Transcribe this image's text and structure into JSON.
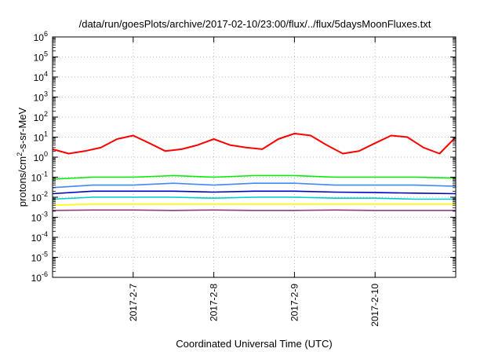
{
  "chart_data": {
    "type": "line",
    "title": "/data/run/goesPlots/archive/2017-02-10/23:00/flux/../flux/5daysMoonFluxes.txt",
    "xlabel": "Coordinated Universal Time (UTC)",
    "ylabel": {
      "prefix": "protons/cm",
      "sup": "2",
      "suffix": "-s-sr-MeV"
    },
    "yscale": "log",
    "ylim": [
      1e-06,
      1000000.0
    ],
    "xlim": [
      "2017-02-06T00:00",
      "2017-02-11T00:00"
    ],
    "y_ticks": [
      {
        "value": 1e-06,
        "base": "10",
        "exp": "-6"
      },
      {
        "value": 1e-05,
        "base": "10",
        "exp": "-5"
      },
      {
        "value": 0.0001,
        "base": "10",
        "exp": "-4"
      },
      {
        "value": 0.001,
        "base": "10",
        "exp": "-3"
      },
      {
        "value": 0.01,
        "base": "10",
        "exp": "-2"
      },
      {
        "value": 0.1,
        "base": "10",
        "exp": "-1"
      },
      {
        "value": 1,
        "base": "10",
        "exp": "0"
      },
      {
        "value": 10,
        "base": "10",
        "exp": "1"
      },
      {
        "value": 100,
        "base": "10",
        "exp": "2"
      },
      {
        "value": 1000,
        "base": "10",
        "exp": "3"
      },
      {
        "value": 10000,
        "base": "10",
        "exp": "4"
      },
      {
        "value": 100000,
        "base": "10",
        "exp": "5"
      },
      {
        "value": 1000000,
        "base": "10",
        "exp": "6"
      }
    ],
    "x_ticks": [
      {
        "value": "2017-02-07T00:00",
        "label": "2017-2-7"
      },
      {
        "value": "2017-02-08T00:00",
        "label": "2017-2-8"
      },
      {
        "value": "2017-02-09T00:00",
        "label": "2017-2-9"
      },
      {
        "value": "2017-02-10T00:00",
        "label": "2017-2-10"
      }
    ],
    "grid": true,
    "legend": "none",
    "series": [
      {
        "color": "#ff0000",
        "x": [
          "2017-02-06T00:00",
          "2017-02-06T04:48",
          "2017-02-06T09:36",
          "2017-02-06T14:24",
          "2017-02-06T19:12",
          "2017-02-07T00:00",
          "2017-02-07T04:48",
          "2017-02-07T09:36",
          "2017-02-07T14:24",
          "2017-02-07T19:12",
          "2017-02-08T00:00",
          "2017-02-08T04:48",
          "2017-02-08T09:36",
          "2017-02-08T14:24",
          "2017-02-08T19:12",
          "2017-02-09T00:00",
          "2017-02-09T04:48",
          "2017-02-09T09:36",
          "2017-02-09T14:24",
          "2017-02-09T19:12",
          "2017-02-10T00:00",
          "2017-02-10T04:48",
          "2017-02-10T09:36",
          "2017-02-10T14:24",
          "2017-02-10T19:12",
          "2017-02-11T00:00"
        ],
        "values": [
          2.5,
          1.5,
          2,
          3,
          8,
          12,
          5,
          2,
          2.5,
          4,
          8,
          4,
          3,
          2.5,
          8,
          15,
          12,
          4,
          1.5,
          2,
          5,
          12,
          10,
          3,
          1.5,
          10
        ]
      },
      {
        "color": "#00ee00",
        "x": [
          "2017-02-06T00:00",
          "2017-02-06T12:00",
          "2017-02-07T00:00",
          "2017-02-07T12:00",
          "2017-02-08T00:00",
          "2017-02-08T12:00",
          "2017-02-09T00:00",
          "2017-02-09T12:00",
          "2017-02-10T00:00",
          "2017-02-10T12:00",
          "2017-02-11T00:00"
        ],
        "values": [
          0.08,
          0.1,
          0.1,
          0.12,
          0.1,
          0.12,
          0.12,
          0.1,
          0.1,
          0.1,
          0.09
        ]
      },
      {
        "color": "#4488ff",
        "x": [
          "2017-02-06T00:00",
          "2017-02-06T12:00",
          "2017-02-07T00:00",
          "2017-02-07T12:00",
          "2017-02-08T00:00",
          "2017-02-08T12:00",
          "2017-02-09T00:00",
          "2017-02-09T12:00",
          "2017-02-10T00:00",
          "2017-02-10T12:00",
          "2017-02-11T00:00"
        ],
        "values": [
          0.03,
          0.04,
          0.04,
          0.05,
          0.04,
          0.05,
          0.05,
          0.04,
          0.04,
          0.04,
          0.035
        ]
      },
      {
        "color": "#0000cc",
        "x": [
          "2017-02-06T00:00",
          "2017-02-06T12:00",
          "2017-02-07T00:00",
          "2017-02-07T12:00",
          "2017-02-08T00:00",
          "2017-02-08T12:00",
          "2017-02-09T00:00",
          "2017-02-09T12:00",
          "2017-02-10T00:00",
          "2017-02-10T12:00",
          "2017-02-11T00:00"
        ],
        "values": [
          0.015,
          0.02,
          0.02,
          0.02,
          0.018,
          0.02,
          0.02,
          0.018,
          0.017,
          0.016,
          0.015
        ]
      },
      {
        "color": "#00cccc",
        "x": [
          "2017-02-06T00:00",
          "2017-02-06T12:00",
          "2017-02-07T00:00",
          "2017-02-07T12:00",
          "2017-02-08T00:00",
          "2017-02-08T12:00",
          "2017-02-09T00:00",
          "2017-02-09T12:00",
          "2017-02-10T00:00",
          "2017-02-10T12:00",
          "2017-02-11T00:00"
        ],
        "values": [
          0.008,
          0.01,
          0.01,
          0.01,
          0.009,
          0.01,
          0.01,
          0.009,
          0.009,
          0.008,
          0.008
        ]
      },
      {
        "color": "#ffff00",
        "x": [
          "2017-02-06T00:00",
          "2017-02-06T12:00",
          "2017-02-07T00:00",
          "2017-02-07T12:00",
          "2017-02-08T00:00",
          "2017-02-08T12:00",
          "2017-02-09T00:00",
          "2017-02-09T12:00",
          "2017-02-10T00:00",
          "2017-02-10T12:00",
          "2017-02-11T00:00"
        ],
        "values": [
          0.004,
          0.0045,
          0.0045,
          0.0045,
          0.0045,
          0.0045,
          0.0045,
          0.0045,
          0.0045,
          0.0045,
          0.0045
        ]
      },
      {
        "color": "#8e3d7a",
        "x": [
          "2017-02-06T00:00",
          "2017-02-06T12:00",
          "2017-02-07T00:00",
          "2017-02-07T12:00",
          "2017-02-08T00:00",
          "2017-02-08T12:00",
          "2017-02-09T00:00",
          "2017-02-09T12:00",
          "2017-02-10T00:00",
          "2017-02-10T12:00",
          "2017-02-11T00:00"
        ],
        "values": [
          0.0022,
          0.0023,
          0.0023,
          0.0022,
          0.0023,
          0.0022,
          0.0022,
          0.0023,
          0.0022,
          0.0022,
          0.0022
        ]
      }
    ]
  }
}
